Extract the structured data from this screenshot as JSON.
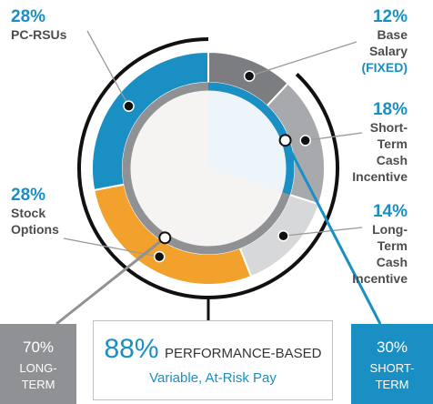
{
  "chart_data": {
    "type": "pie",
    "style": "donut",
    "slices": [
      {
        "key": "base",
        "value": 12,
        "pct_label": "12%",
        "label": [
          "Base",
          "Salary",
          "(FIXED)"
        ],
        "color": "#7b7d80",
        "label_color": "#1a8fc4"
      },
      {
        "key": "stci",
        "value": 18,
        "pct_label": "18%",
        "label": [
          "Short-",
          "Term",
          "Cash",
          "Incentive"
        ],
        "color": "#a7a9ac",
        "label_color": "#1a8fc4"
      },
      {
        "key": "ltci",
        "value": 14,
        "pct_label": "14%",
        "label": [
          "Long-",
          "Term",
          "Cash",
          "Incentive"
        ],
        "color": "#d7d8da",
        "label_color": "#1a8fc4"
      },
      {
        "key": "stock",
        "value": 28,
        "pct_label": "28%",
        "label": [
          "Stock",
          "Options"
        ],
        "color": "#f2a22c",
        "label_color": "#1a8fc4"
      },
      {
        "key": "rsu",
        "value": 28,
        "pct_label": "28%",
        "label": [
          "PC-RSUs"
        ],
        "color": "#1a8fc4",
        "label_color": "#1a8fc4"
      }
    ],
    "inner_ring": {
      "long_term_color": "#8f9194",
      "short_term_color": "#1a8fc4"
    }
  },
  "boxes": {
    "long_term": {
      "value": "70%",
      "label": "LONG-\nTERM"
    },
    "short_term": {
      "value": "30%",
      "label": "SHORT-\nTERM"
    },
    "performance": {
      "value": "88%",
      "title": "PERFORMANCE-BASED",
      "subtitle": "Variable, At-Risk Pay"
    }
  },
  "colors": {
    "accent": "#1a8fc4",
    "orange": "#f2a22c",
    "gray": "#8f9194"
  }
}
